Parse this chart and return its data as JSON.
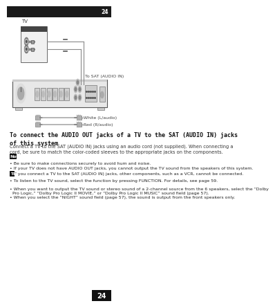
{
  "page_num": "24",
  "bg_color": "#ffffff",
  "title": "To connect the AUDIO OUT jacks of a TV to the SAT (AUDIO IN) jacks\nof this system",
  "body_text": "Connect a TV to the SAT (AUDIO IN) jacks using an audio cord (not supplied). When connecting a\ncord, be sure to match the color-coded sleeves to the appropriate jacks on the components.",
  "note_label": "Note",
  "note_bullets": [
    "Be sure to make connections securely to avoid hum and noise.",
    "If your TV does not have AUDIO OUT jacks, you cannot output the TV sound from the speakers of this system.",
    "If you connect a TV to the SAT (AUDIO IN) jacks, other components, such as a VCR, cannot be connected."
  ],
  "tip_label": "Tip",
  "tip_bullets": [
    "To listen to the TV sound, select the function by pressing FUNCTION. For details, see page 59.",
    "When you want to output the TV sound or stereo sound of a 2-channel source from the 6 speakers, select the “Dolby\n  Pro Logic,” “Dolby Pro Logic II MOVIE,” or “Dolby Pro Logic II MUSIC” sound field (page 57).",
    "When you select the “NIGHT” sound field (page 57), the sound is output from the front speakers only."
  ],
  "cable_label_white": "White (L/audio)",
  "cable_label_red": "Red (R/audio)",
  "tv_label": "TV",
  "sat_label": "To SAT (AUDIO IN)",
  "top_bar_color": "#1a1a1a",
  "note_bg": "#111111",
  "tip_bg": "#111111",
  "diagram_line_color": "#888888",
  "receiver_body_color": "#e8e8e8",
  "receiver_edge_color": "#555555"
}
